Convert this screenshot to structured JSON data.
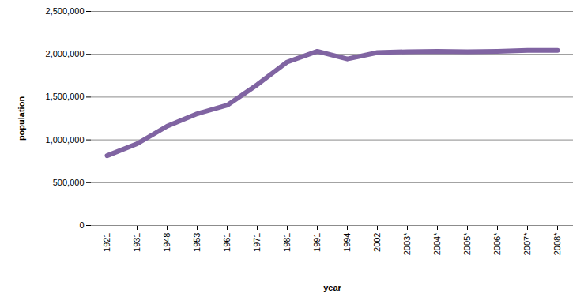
{
  "chart_data": {
    "type": "line",
    "x_label": "year",
    "y_label": "population",
    "categories": [
      "1921",
      "1931",
      "1948",
      "1953",
      "1961",
      "1971",
      "1981",
      "1991",
      "1994",
      "2002",
      "2003*",
      "2004*",
      "2005*",
      "2006*",
      "2007*",
      "2008*"
    ],
    "values": [
      815000,
      955000,
      1160000,
      1305000,
      1405000,
      1645000,
      1910000,
      2035000,
      1945000,
      2020000,
      2030000,
      2035000,
      2030000,
      2035000,
      2045000,
      2045000
    ],
    "color": "#8064a2",
    "ylim": [
      0,
      2500000
    ],
    "yticks": [
      0,
      {
        "value": 500000,
        "label": "500,000"
      },
      {
        "value": 1000000,
        "label": "1,000,000"
      },
      {
        "value": 1500000,
        "label": "1,500,000"
      },
      {
        "value": 2000000,
        "label": "2,000,000"
      },
      {
        "value": 2500000,
        "label": "2,500,000"
      }
    ],
    "grid": true
  }
}
